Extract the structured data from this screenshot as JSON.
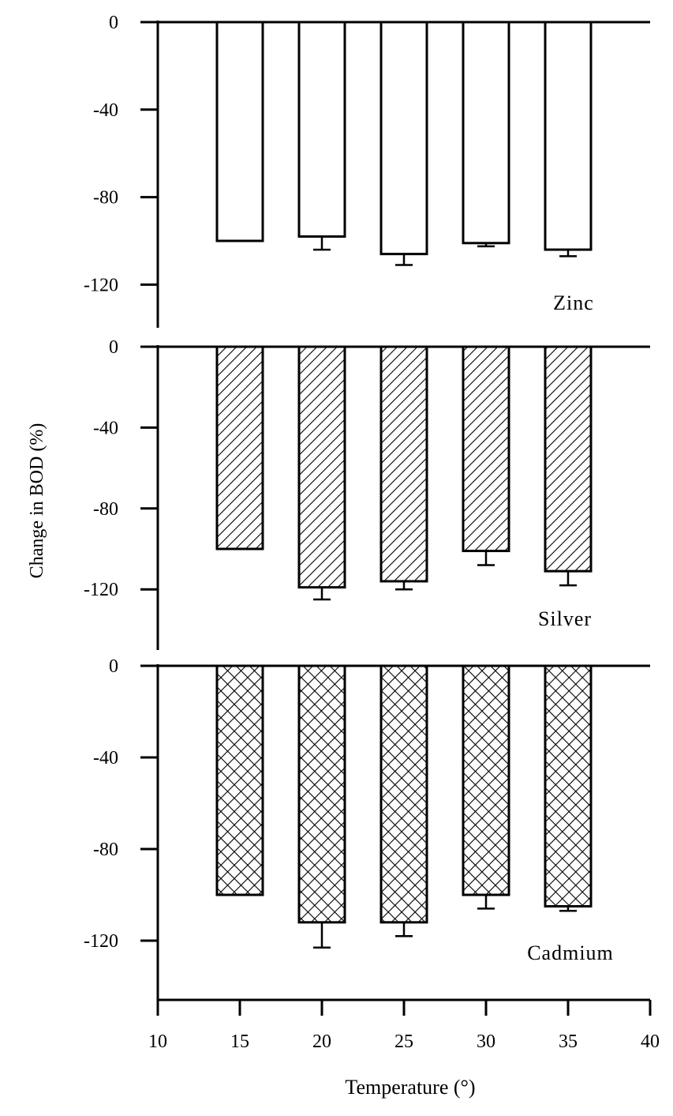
{
  "colors": {
    "axis": "#000000",
    "bar_fill": "#ffffff",
    "bar_stroke": "#000000",
    "hatch": "#000000"
  },
  "ylabel": "Change in BOD (%)",
  "chart_data": [
    {
      "type": "bar",
      "panel_label": "Zinc",
      "pattern": "open",
      "x": [
        15,
        20,
        25,
        30,
        35
      ],
      "values": [
        -100,
        -98,
        -106,
        -101,
        -104
      ],
      "errors": [
        0,
        6,
        5,
        1.5,
        3
      ],
      "xlim": [
        10,
        40
      ],
      "ylim": [
        -140,
        0
      ],
      "yticks": [
        0,
        -40,
        -80,
        -120
      ],
      "ytick_labels": [
        "0",
        "-40",
        "-80",
        "-120"
      ]
    },
    {
      "type": "bar",
      "panel_label": "Silver",
      "pattern": "diagonal",
      "x": [
        15,
        20,
        25,
        30,
        35
      ],
      "values": [
        -100,
        -119,
        -116,
        -101,
        -111
      ],
      "errors": [
        0,
        6,
        4,
        7,
        7
      ],
      "xlim": [
        10,
        40
      ],
      "ylim": [
        -150,
        0
      ],
      "yticks": [
        0,
        -40,
        -80,
        -120
      ],
      "ytick_labels": [
        "0",
        "-40",
        "-80",
        "-120"
      ]
    },
    {
      "type": "bar",
      "panel_label": "Cadmium",
      "pattern": "crosshatch",
      "x": [
        15,
        20,
        25,
        30,
        35
      ],
      "values": [
        -100,
        -112,
        -112,
        -100,
        -105
      ],
      "errors": [
        0,
        11,
        6,
        6,
        2
      ],
      "xlim": [
        10,
        40
      ],
      "ylim": [
        -146,
        0
      ],
      "yticks": [
        0,
        -40,
        -80,
        -120
      ],
      "ytick_labels": [
        "0",
        "-40",
        "-80",
        "-120"
      ],
      "xticks": [
        10,
        15,
        20,
        25,
        30,
        35,
        40
      ],
      "xtick_labels": [
        "10",
        "15",
        "20",
        "25",
        "30",
        "35",
        "40"
      ],
      "xlabel": "Temperature (°)"
    }
  ]
}
